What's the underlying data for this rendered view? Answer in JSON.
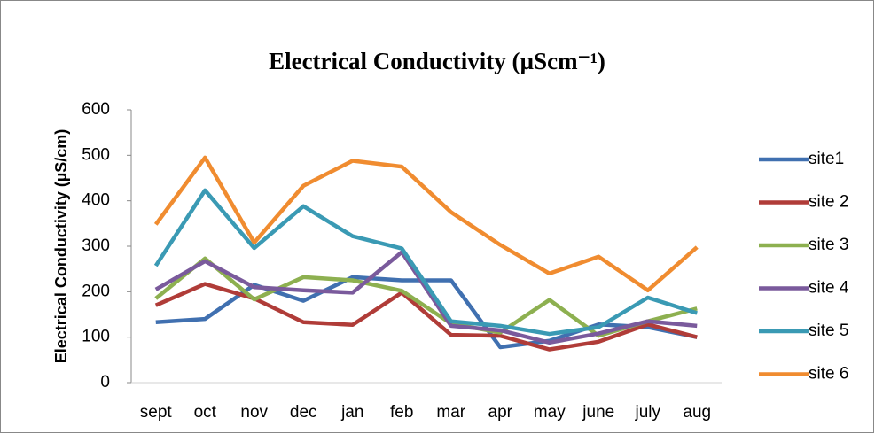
{
  "chart_data": {
    "type": "line",
    "title": "Electrical Conductivity (µScm⁻¹)",
    "y_label": "Electrical Conductivity (µS/cm)",
    "categories": [
      "sept",
      "oct",
      "nov",
      "dec",
      "jan",
      "feb",
      "mar",
      "apr",
      "may",
      "june",
      "july",
      "aug"
    ],
    "series": [
      {
        "name": "site1",
        "color": "#4070b0",
        "values": [
          133,
          140,
          215,
          180,
          232,
          225,
          225,
          78,
          92,
          128,
          122,
          100
        ]
      },
      {
        "name": "site 2",
        "color": "#b03c38",
        "values": [
          170,
          217,
          185,
          133,
          127,
          198,
          105,
          103,
          73,
          90,
          128,
          100
        ]
      },
      {
        "name": "site 3",
        "color": "#8db050",
        "values": [
          185,
          273,
          183,
          232,
          225,
          202,
          130,
          110,
          182,
          103,
          135,
          163
        ]
      },
      {
        "name": "site 4",
        "color": "#7a5a9c",
        "values": [
          205,
          267,
          210,
          203,
          198,
          287,
          125,
          115,
          88,
          108,
          135,
          125
        ]
      },
      {
        "name": "site 5",
        "color": "#3a9ab4",
        "values": [
          257,
          423,
          296,
          388,
          322,
          295,
          135,
          125,
          107,
          122,
          187,
          153
        ]
      },
      {
        "name": "site 6",
        "color": "#f08c30",
        "values": [
          348,
          495,
          308,
          433,
          488,
          475,
          375,
          303,
          240,
          277,
          203,
          298
        ]
      }
    ],
    "ylim": [
      0,
      600
    ],
    "yticks": [
      0,
      100,
      200,
      300,
      400,
      500,
      600
    ],
    "grid": false,
    "legend": "right"
  }
}
